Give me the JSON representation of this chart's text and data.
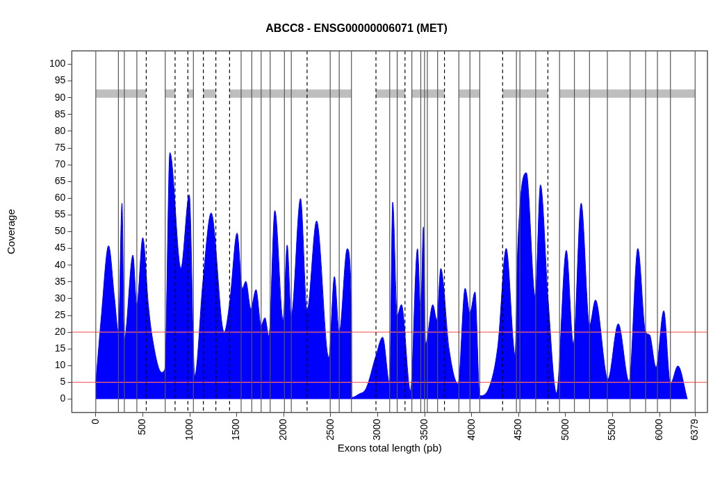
{
  "chart_data": {
    "type": "area",
    "title": "ABCC8 - ENSG00000006071 (MET)",
    "xlabel": "Exons total length (pb)",
    "ylabel": "Coverage",
    "xlim": [
      -255,
      6510
    ],
    "ylim": [
      -4,
      104
    ],
    "xticks": [
      0,
      500,
      1000,
      1500,
      2000,
      2500,
      3000,
      3500,
      4000,
      4500,
      5000,
      5500,
      6000,
      6379
    ],
    "yticks": [
      0,
      5,
      10,
      15,
      20,
      25,
      30,
      35,
      40,
      45,
      50,
      55,
      60,
      65,
      70,
      75,
      80,
      85,
      90,
      95,
      100
    ],
    "grid": false,
    "legend": false,
    "series": [
      {
        "color": "#0000ff",
        "x": [
          0,
          60,
          136,
          200,
          241,
          279,
          304,
          395,
          437,
          500,
          560,
          600,
          701,
          735,
          789,
          906,
          995,
          1053,
          1140,
          1228,
          1366,
          1430,
          1504,
          1560,
          1597,
          1650,
          1705,
          1760,
          1800,
          1843,
          1906,
          1994,
          2037,
          2081,
          2179,
          2249,
          2350,
          2480,
          2540,
          2591,
          2676,
          2720,
          2725,
          2800,
          2877,
          2982,
          3053,
          3128,
          3160,
          3208,
          3253,
          3349,
          3424,
          3459,
          3487,
          3510,
          3587,
          3630,
          3672,
          3760,
          3856,
          3931,
          3982,
          4036,
          4087,
          4182,
          4282,
          4368,
          4464,
          4489,
          4582,
          4677,
          4733,
          4812,
          4903,
          5008,
          5083,
          5166,
          5255,
          5318,
          5451,
          5561,
          5676,
          5769,
          5852,
          5894,
          5963,
          6045,
          6116,
          6196,
          6296
        ],
        "values": [
          5,
          25,
          45.8,
          30,
          20,
          58.5,
          18,
          43,
          28,
          48.2,
          28,
          18.7,
          8,
          9,
          73.6,
          39,
          61,
          7,
          35,
          55.6,
          20,
          30,
          49.6,
          33,
          35.2,
          27,
          32.7,
          22,
          24.3,
          18.7,
          56.3,
          23.6,
          46,
          25,
          59.9,
          26.4,
          53.2,
          12.3,
          36.6,
          20,
          44.9,
          30,
          0.5,
          1.5,
          3.2,
          13,
          18.5,
          4.6,
          58.8,
          25,
          28.2,
          2.5,
          44.9,
          26,
          51.4,
          16.5,
          28.2,
          23.6,
          39,
          15,
          4.6,
          33.1,
          25.7,
          32,
          1,
          3.2,
          16.5,
          45,
          13,
          43.3,
          67.6,
          30.6,
          64,
          30.6,
          1.8,
          44.4,
          16.5,
          58.5,
          22,
          29.6,
          6,
          22.5,
          5.3,
          45,
          20,
          19.2,
          9.5,
          26.4,
          4.6,
          9.9,
          0
        ]
      },
      {
        "type": "line",
        "color": "#bebebe",
        "x": [
          0,
          537,
          538,
          739,
          844,
          845,
          980,
          1039,
          1040,
          1145,
          1278,
          1279,
          1424,
          2721,
          2722,
          2982,
          3291,
          3292,
          3364,
          3711,
          3712,
          3864,
          4087,
          4088,
          4330,
          4812,
          4813,
          4936,
          6379
        ],
        "values": [
          91.25,
          91.25,
          null,
          91.25,
          91.25,
          null,
          91.25,
          91.25,
          null,
          91.25,
          91.25,
          null,
          91.25,
          91.25,
          null,
          91.25,
          91.25,
          null,
          91.25,
          91.25,
          null,
          91.25,
          91.25,
          null,
          91.25,
          91.25,
          null,
          91.25,
          91.25
        ]
      }
    ],
    "ref_lines": [
      {
        "axis": "y",
        "value": 5,
        "color": "#ff6b6b",
        "line_style": "solid"
      },
      {
        "axis": "y",
        "value": 20,
        "color": "#ff6b6b",
        "line_style": "solid"
      },
      {
        "axis": "x",
        "value": 0,
        "color": "#555555",
        "line_style": "solid"
      },
      {
        "axis": "x",
        "value": 241,
        "color": "#555555",
        "line_style": "solid"
      },
      {
        "axis": "x",
        "value": 304,
        "color": "#555555",
        "line_style": "solid"
      },
      {
        "axis": "x",
        "value": 437,
        "color": "#555555",
        "line_style": "solid"
      },
      {
        "axis": "x",
        "value": 537,
        "color": "#000000",
        "line_style": "dashed"
      },
      {
        "axis": "x",
        "value": 739,
        "color": "#555555",
        "line_style": "solid"
      },
      {
        "axis": "x",
        "value": 844,
        "color": "#000000",
        "line_style": "dashed"
      },
      {
        "axis": "x",
        "value": 980,
        "color": "#000000",
        "line_style": "dashed"
      },
      {
        "axis": "x",
        "value": 1039,
        "color": "#555555",
        "line_style": "solid"
      },
      {
        "axis": "x",
        "value": 1145,
        "color": "#000000",
        "line_style": "dashed"
      },
      {
        "axis": "x",
        "value": 1278,
        "color": "#000000",
        "line_style": "dashed"
      },
      {
        "axis": "x",
        "value": 1424,
        "color": "#000000",
        "line_style": "dashed"
      },
      {
        "axis": "x",
        "value": 1547,
        "color": "#555555",
        "line_style": "solid"
      },
      {
        "axis": "x",
        "value": 1660,
        "color": "#555555",
        "line_style": "solid"
      },
      {
        "axis": "x",
        "value": 1760,
        "color": "#555555",
        "line_style": "solid"
      },
      {
        "axis": "x",
        "value": 1856,
        "color": "#555555",
        "line_style": "solid"
      },
      {
        "axis": "x",
        "value": 2008,
        "color": "#555555",
        "line_style": "solid"
      },
      {
        "axis": "x",
        "value": 2081,
        "color": "#555555",
        "line_style": "solid"
      },
      {
        "axis": "x",
        "value": 2249,
        "color": "#000000",
        "line_style": "dashed"
      },
      {
        "axis": "x",
        "value": 2495,
        "color": "#555555",
        "line_style": "solid"
      },
      {
        "axis": "x",
        "value": 2591,
        "color": "#555555",
        "line_style": "solid"
      },
      {
        "axis": "x",
        "value": 2721,
        "color": "#555555",
        "line_style": "solid"
      },
      {
        "axis": "x",
        "value": 2982,
        "color": "#000000",
        "line_style": "dashed"
      },
      {
        "axis": "x",
        "value": 3128,
        "color": "#555555",
        "line_style": "solid"
      },
      {
        "axis": "x",
        "value": 3208,
        "color": "#555555",
        "line_style": "solid"
      },
      {
        "axis": "x",
        "value": 3291,
        "color": "#000000",
        "line_style": "dashed"
      },
      {
        "axis": "x",
        "value": 3364,
        "color": "#555555",
        "line_style": "solid"
      },
      {
        "axis": "x",
        "value": 3459,
        "color": "#555555",
        "line_style": "solid"
      },
      {
        "axis": "x",
        "value": 3499,
        "color": "#555555",
        "line_style": "solid"
      },
      {
        "axis": "x",
        "value": 3529,
        "color": "#555555",
        "line_style": "solid"
      },
      {
        "axis": "x",
        "value": 3638,
        "color": "#555555",
        "line_style": "solid"
      },
      {
        "axis": "x",
        "value": 3711,
        "color": "#000000",
        "line_style": "dashed"
      },
      {
        "axis": "x",
        "value": 3864,
        "color": "#555555",
        "line_style": "solid"
      },
      {
        "axis": "x",
        "value": 3982,
        "color": "#555555",
        "line_style": "solid"
      },
      {
        "axis": "x",
        "value": 4087,
        "color": "#555555",
        "line_style": "solid"
      },
      {
        "axis": "x",
        "value": 4330,
        "color": "#000000",
        "line_style": "dashed"
      },
      {
        "axis": "x",
        "value": 4477,
        "color": "#555555",
        "line_style": "solid"
      },
      {
        "axis": "x",
        "value": 4514,
        "color": "#555555",
        "line_style": "solid"
      },
      {
        "axis": "x",
        "value": 4682,
        "color": "#555555",
        "line_style": "solid"
      },
      {
        "axis": "x",
        "value": 4812,
        "color": "#000000",
        "line_style": "dashed"
      },
      {
        "axis": "x",
        "value": 4936,
        "color": "#555555",
        "line_style": "solid"
      },
      {
        "axis": "x",
        "value": 5094,
        "color": "#555555",
        "line_style": "solid"
      },
      {
        "axis": "x",
        "value": 5255,
        "color": "#555555",
        "line_style": "solid"
      },
      {
        "axis": "x",
        "value": 5445,
        "color": "#555555",
        "line_style": "solid"
      },
      {
        "axis": "x",
        "value": 5687,
        "color": "#555555",
        "line_style": "solid"
      },
      {
        "axis": "x",
        "value": 5852,
        "color": "#555555",
        "line_style": "solid"
      },
      {
        "axis": "x",
        "value": 5978,
        "color": "#555555",
        "line_style": "solid"
      },
      {
        "axis": "x",
        "value": 6116,
        "color": "#555555",
        "line_style": "solid"
      },
      {
        "axis": "x",
        "value": 6379,
        "color": "#555555",
        "line_style": "solid"
      }
    ]
  }
}
